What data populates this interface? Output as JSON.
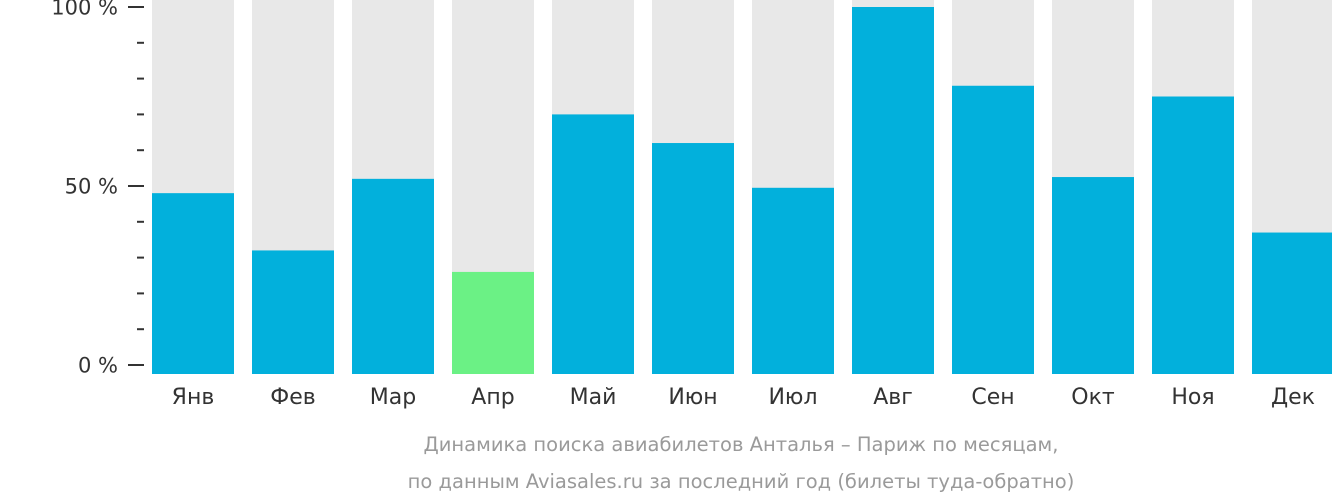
{
  "chart_data": {
    "type": "bar",
    "categories": [
      "Янв",
      "Фев",
      "Мар",
      "Апр",
      "Май",
      "Июн",
      "Июл",
      "Авг",
      "Сен",
      "Окт",
      "Ноя",
      "Дек"
    ],
    "values": [
      48,
      32,
      52,
      26,
      70,
      62,
      49.5,
      100,
      78,
      52.5,
      75,
      37
    ],
    "highlight_index": 3,
    "ylim": [
      0,
      100
    ],
    "y_ticks": [
      {
        "value": 100,
        "label": "100 %"
      },
      {
        "value": 50,
        "label": "50 %"
      },
      {
        "value": 0,
        "label": "0 %"
      }
    ],
    "minor_tick_step": 10,
    "caption_lines": [
      "Динамика поиска авиабилетов Анталья – Париж по месяцам,",
      "по данным Aviasales.ru за последний год (билеты туда-обратно)"
    ],
    "colors": {
      "bar": "#02b0dc",
      "highlight": "#6bf185",
      "track": "#e8e8e8",
      "axis": "#333333",
      "caption": "#9a9a9a"
    }
  }
}
